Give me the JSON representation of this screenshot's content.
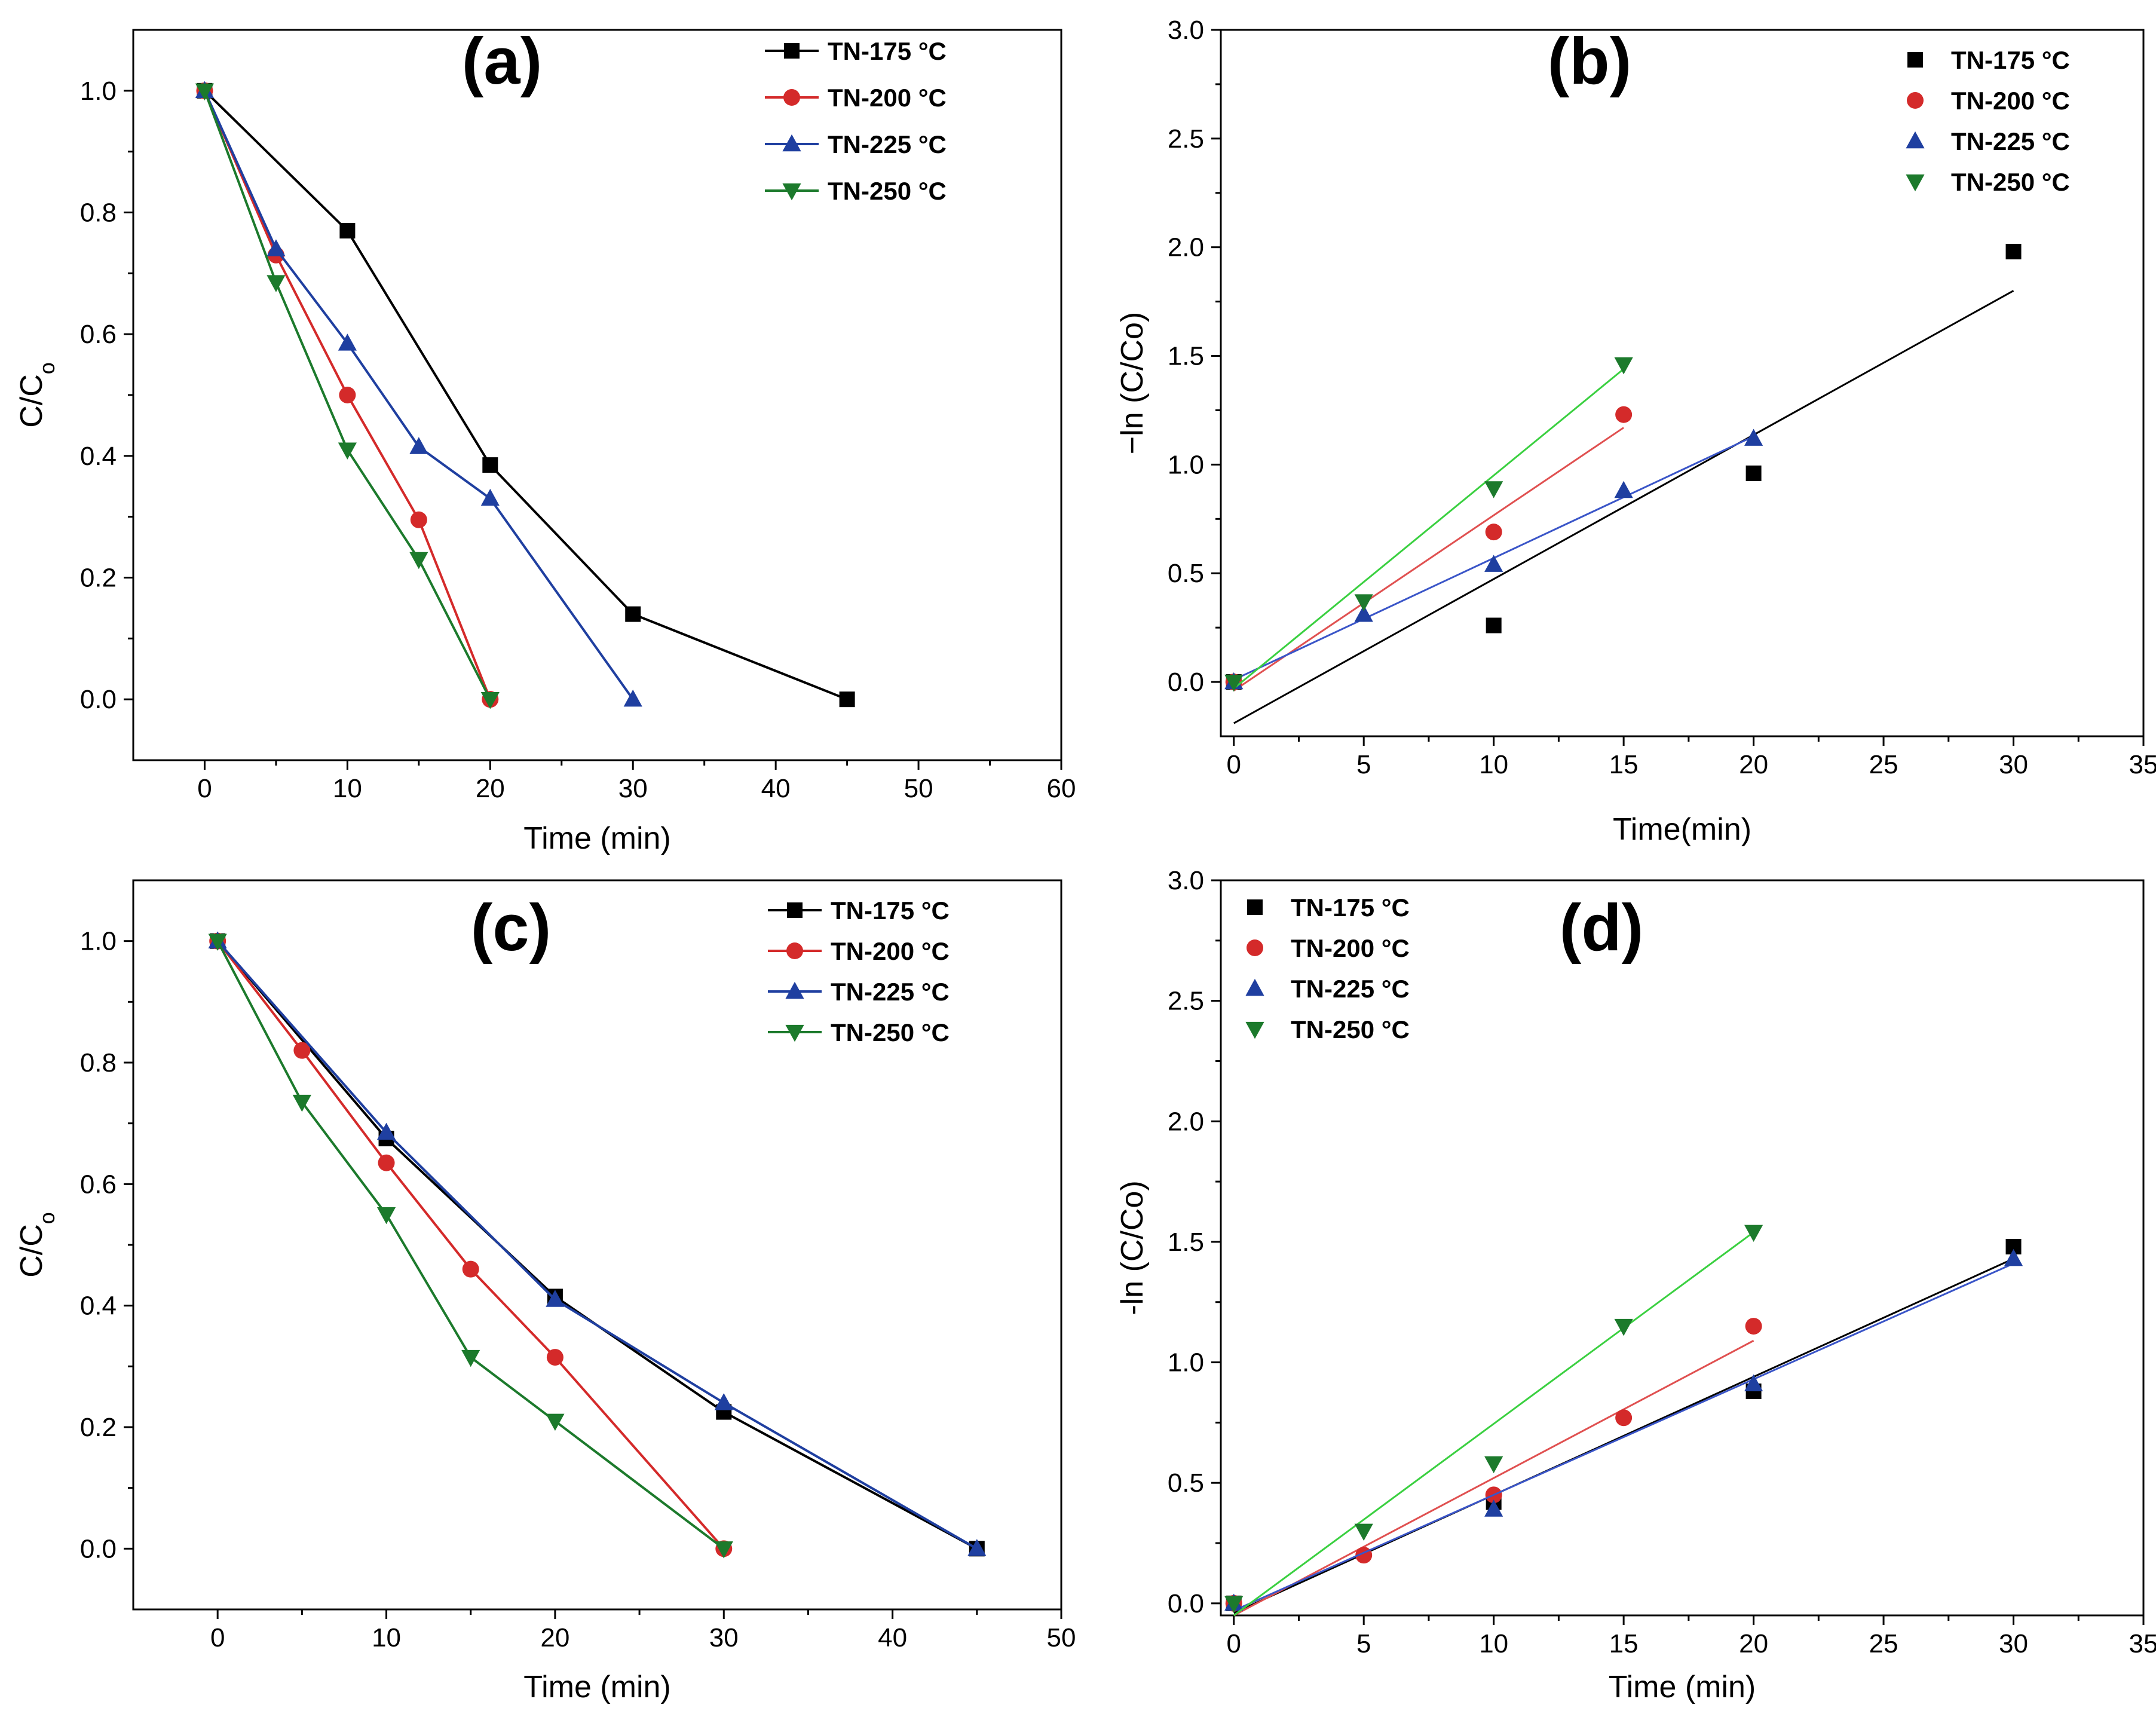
{
  "chart_data": [
    {
      "type": "line",
      "panel_label": "(a)",
      "xlabel": "Time (min)",
      "ylabel": "C/C",
      "ylabel_sub": "o",
      "xlim": [
        -5,
        60
      ],
      "ylim": [
        -0.1,
        1.1
      ],
      "xticks": [
        0,
        10,
        20,
        30,
        40,
        50,
        60
      ],
      "yticks": [
        0.0,
        0.2,
        0.4,
        0.6,
        0.8,
        1.0
      ],
      "tick_decimals": 1,
      "legend_position": "top-right",
      "series": [
        {
          "name": "TN-175 °C",
          "color": "#000000",
          "marker": "square",
          "line": true,
          "x": [
            0,
            10,
            20,
            30,
            45
          ],
          "y": [
            1.0,
            0.77,
            0.385,
            0.14,
            0.0
          ]
        },
        {
          "name": "TN-200 °C",
          "color": "#d42a2a",
          "marker": "circle",
          "line": true,
          "x": [
            0,
            5,
            10,
            15,
            20
          ],
          "y": [
            1.0,
            0.73,
            0.5,
            0.295,
            0.0
          ]
        },
        {
          "name": "TN-225 °C",
          "color": "#1f3fa0",
          "marker": "triangle-up",
          "line": true,
          "x": [
            0,
            5,
            10,
            15,
            20,
            30
          ],
          "y": [
            1.0,
            0.74,
            0.585,
            0.415,
            0.33,
            0.0
          ]
        },
        {
          "name": "TN-250 °C",
          "color": "#1c7a2c",
          "marker": "triangle-down",
          "line": true,
          "x": [
            0,
            5,
            10,
            15,
            20
          ],
          "y": [
            1.0,
            0.685,
            0.41,
            0.23,
            0.0
          ]
        }
      ]
    },
    {
      "type": "scatter",
      "panel_label": "(b)",
      "xlabel": "Time(min)",
      "ylabel": "−ln (C/Co)",
      "xlim": [
        -0.5,
        35
      ],
      "ylim": [
        -0.25,
        3.0
      ],
      "xticks": [
        0,
        5,
        10,
        15,
        20,
        25,
        30,
        35
      ],
      "yticks": [
        0.0,
        0.5,
        1.0,
        1.5,
        2.0,
        2.5,
        3.0
      ],
      "tick_decimals": 1,
      "legend_position": "top-right",
      "series": [
        {
          "name": "TN-175 °C",
          "color": "#000000",
          "fit_color": "#000000",
          "marker": "square",
          "x": [
            0,
            10,
            20,
            30
          ],
          "y": [
            0.0,
            0.26,
            0.96,
            1.98
          ],
          "fit": [
            [
              0,
              -0.19
            ],
            [
              30,
              1.8
            ]
          ]
        },
        {
          "name": "TN-200 °C",
          "color": "#d42a2a",
          "fit_color": "#e05050",
          "marker": "circle",
          "x": [
            0,
            10,
            15
          ],
          "y": [
            0.0,
            0.69,
            1.23
          ],
          "fit": [
            [
              0,
              -0.04
            ],
            [
              15,
              1.17
            ]
          ]
        },
        {
          "name": "TN-225 °C",
          "color": "#1f3fa0",
          "fit_color": "#3a55c8",
          "marker": "triangle-up",
          "x": [
            0,
            5,
            10,
            15,
            20
          ],
          "y": [
            0.0,
            0.31,
            0.54,
            0.88,
            1.12
          ],
          "fit": [
            [
              0,
              0.01
            ],
            [
              20,
              1.13
            ]
          ]
        },
        {
          "name": "TN-250 °C",
          "color": "#1c7a2c",
          "fit_color": "#3ad040",
          "marker": "triangle-down",
          "x": [
            0,
            5,
            10,
            15
          ],
          "y": [
            0.0,
            0.37,
            0.89,
            1.46
          ],
          "fit": [
            [
              0,
              -0.03
            ],
            [
              15,
              1.44
            ]
          ]
        }
      ]
    },
    {
      "type": "line",
      "panel_label": "(c)",
      "xlabel": "Time (min)",
      "ylabel": "C/C",
      "ylabel_sub": "o",
      "xlim": [
        -5,
        50
      ],
      "ylim": [
        -0.1,
        1.1
      ],
      "xticks": [
        0,
        10,
        20,
        30,
        40,
        50
      ],
      "yticks": [
        0.0,
        0.2,
        0.4,
        0.6,
        0.8,
        1.0
      ],
      "tick_decimals": 1,
      "legend_position": "top-right",
      "series": [
        {
          "name": "TN-175 °C",
          "color": "#000000",
          "marker": "square",
          "line": true,
          "x": [
            0,
            10,
            20,
            30,
            45
          ],
          "y": [
            1.0,
            0.675,
            0.415,
            0.225,
            0.0
          ]
        },
        {
          "name": "TN-200 °C",
          "color": "#d42a2a",
          "marker": "circle",
          "line": true,
          "x": [
            0,
            5,
            10,
            15,
            20,
            30
          ],
          "y": [
            1.0,
            0.82,
            0.635,
            0.46,
            0.315,
            0.0
          ]
        },
        {
          "name": "TN-225 °C",
          "color": "#1f3fa0",
          "marker": "triangle-up",
          "line": true,
          "x": [
            0,
            10,
            20,
            30,
            45
          ],
          "y": [
            1.0,
            0.685,
            0.41,
            0.24,
            0.0
          ]
        },
        {
          "name": "TN-250 °C",
          "color": "#1c7a2c",
          "marker": "triangle-down",
          "line": true,
          "x": [
            0,
            5,
            10,
            15,
            20,
            30
          ],
          "y": [
            1.0,
            0.735,
            0.55,
            0.315,
            0.21,
            0.0
          ]
        }
      ]
    },
    {
      "type": "scatter",
      "panel_label": "(d)",
      "xlabel": "Time (min)",
      "ylabel": "-ln (C/Co)",
      "xlim": [
        -0.5,
        35
      ],
      "ylim": [
        -0.05,
        3.0
      ],
      "xticks": [
        0,
        5,
        10,
        15,
        20,
        25,
        30,
        35
      ],
      "yticks": [
        0.0,
        0.5,
        1.0,
        1.5,
        2.0,
        2.5,
        3.0
      ],
      "tick_decimals": 1,
      "legend_position": "top-left",
      "series": [
        {
          "name": "TN-175 °C",
          "color": "#000000",
          "fit_color": "#000000",
          "marker": "square",
          "x": [
            0,
            10,
            20,
            30
          ],
          "y": [
            0.0,
            0.42,
            0.88,
            1.48
          ],
          "fit": [
            [
              0,
              -0.04
            ],
            [
              30,
              1.43
            ]
          ]
        },
        {
          "name": "TN-200 °C",
          "color": "#d42a2a",
          "fit_color": "#e05050",
          "marker": "circle",
          "x": [
            0,
            5,
            10,
            15,
            20
          ],
          "y": [
            0.0,
            0.2,
            0.45,
            0.77,
            1.15
          ],
          "fit": [
            [
              0,
              -0.05
            ],
            [
              20,
              1.09
            ]
          ]
        },
        {
          "name": "TN-225 °C",
          "color": "#1f3fa0",
          "fit_color": "#3a55c8",
          "marker": "triangle-up",
          "x": [
            0,
            10,
            20,
            30
          ],
          "y": [
            0.0,
            0.39,
            0.91,
            1.43
          ],
          "fit": [
            [
              0,
              -0.03
            ],
            [
              30,
              1.41
            ]
          ]
        },
        {
          "name": "TN-250 °C",
          "color": "#1c7a2c",
          "fit_color": "#3ad040",
          "marker": "triangle-down",
          "x": [
            0,
            5,
            10,
            15,
            20
          ],
          "y": [
            0.0,
            0.3,
            0.58,
            1.15,
            1.54
          ],
          "fit": [
            [
              0,
              -0.05
            ],
            [
              20,
              1.54
            ]
          ]
        }
      ]
    }
  ]
}
